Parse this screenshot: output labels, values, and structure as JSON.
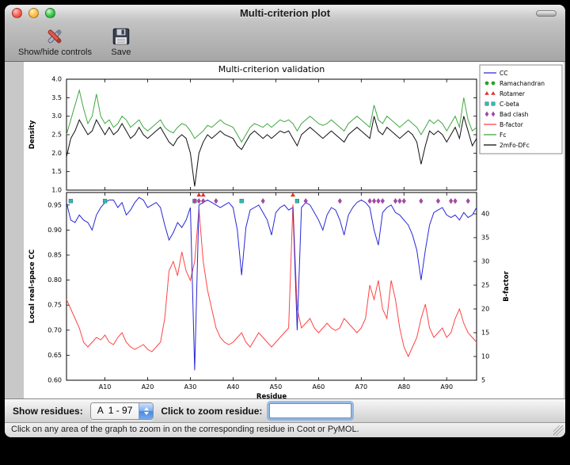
{
  "window": {
    "title": "Multi-criterion plot"
  },
  "toolbar": {
    "buttons": [
      {
        "label": "Show/hide controls"
      },
      {
        "label": "Save"
      }
    ]
  },
  "controls": {
    "show_residues_label": "Show residues:",
    "residue_range_value": "A  1 - 97",
    "zoom_label": "Click to zoom residue:",
    "zoom_input_value": ""
  },
  "status": {
    "text": "Click on any area of the graph to zoom in on the corresponding residue in Coot or PyMOL."
  },
  "chart_data": {
    "type": "line",
    "title": "Multi-criterion validation",
    "x_range": [
      1,
      97
    ],
    "xlabel": "Residue",
    "xtick_positions": [
      10,
      20,
      30,
      40,
      50,
      60,
      70,
      80,
      90
    ],
    "xtick_labels": [
      "A10",
      "A20",
      "A30",
      "A40",
      "A50",
      "A60",
      "A70",
      "A80",
      "A90"
    ],
    "top_plot": {
      "ylabel": "Density",
      "ylim": [
        1.0,
        4.0
      ],
      "yticks": [
        1.0,
        1.5,
        2.0,
        2.5,
        3.0,
        3.5,
        4.0
      ],
      "series": [
        {
          "name": "Fc",
          "color": "#41a742",
          "values": [
            2.5,
            2.9,
            3.3,
            3.7,
            3.2,
            2.8,
            3.0,
            3.6,
            3.0,
            2.8,
            2.9,
            2.7,
            2.8,
            3.0,
            2.9,
            2.7,
            2.8,
            2.9,
            2.7,
            2.6,
            2.7,
            2.8,
            2.9,
            2.7,
            2.6,
            2.55,
            2.7,
            2.8,
            2.75,
            2.6,
            2.4,
            2.5,
            2.6,
            2.75,
            2.7,
            2.8,
            2.9,
            2.8,
            2.75,
            2.7,
            2.5,
            2.3,
            2.5,
            2.7,
            2.8,
            2.75,
            2.7,
            2.8,
            2.7,
            2.8,
            2.9,
            2.85,
            2.9,
            2.8,
            2.6,
            2.8,
            2.9,
            3.0,
            2.9,
            2.8,
            2.75,
            2.8,
            2.9,
            2.8,
            2.7,
            2.6,
            2.8,
            2.9,
            3.0,
            2.9,
            2.8,
            2.7,
            3.3,
            2.9,
            2.8,
            3.0,
            2.9,
            2.8,
            2.7,
            2.8,
            2.9,
            2.8,
            2.7,
            2.5,
            2.7,
            2.9,
            2.8,
            2.9,
            2.8,
            2.6,
            2.8,
            3.0,
            2.7,
            3.5,
            2.9,
            2.6,
            2.7
          ]
        },
        {
          "name": "2mFo-DFc",
          "color": "#111111",
          "values": [
            1.9,
            2.4,
            2.6,
            2.9,
            2.7,
            2.5,
            2.6,
            2.9,
            2.7,
            2.5,
            2.7,
            2.5,
            2.6,
            2.8,
            2.6,
            2.4,
            2.5,
            2.7,
            2.5,
            2.4,
            2.5,
            2.6,
            2.7,
            2.5,
            2.3,
            2.2,
            2.4,
            2.5,
            2.4,
            2.0,
            1.1,
            2.0,
            2.3,
            2.5,
            2.4,
            2.5,
            2.6,
            2.5,
            2.45,
            2.4,
            2.2,
            2.1,
            2.3,
            2.5,
            2.6,
            2.5,
            2.4,
            2.5,
            2.4,
            2.5,
            2.6,
            2.55,
            2.6,
            2.4,
            2.2,
            2.5,
            2.6,
            2.7,
            2.6,
            2.5,
            2.4,
            2.5,
            2.6,
            2.5,
            2.4,
            2.3,
            2.5,
            2.6,
            2.7,
            2.6,
            2.5,
            2.4,
            3.0,
            2.6,
            2.5,
            2.7,
            2.6,
            2.5,
            2.4,
            2.5,
            2.6,
            2.5,
            2.3,
            1.7,
            2.2,
            2.6,
            2.5,
            2.6,
            2.5,
            2.3,
            2.5,
            2.7,
            2.4,
            3.0,
            2.6,
            2.2,
            2.4
          ]
        }
      ]
    },
    "bottom_plot": {
      "ylabel_left": "Local real-space CC",
      "ylabel_right": "B-factor",
      "ylim_left": [
        0.6,
        0.975
      ],
      "yticks_left": [
        0.6,
        0.65,
        0.7,
        0.75,
        0.8,
        0.85,
        0.9,
        0.95
      ],
      "ylim_right": [
        5,
        44.5
      ],
      "yticks_right": [
        5,
        10,
        15,
        20,
        25,
        30,
        35,
        40
      ],
      "series": [
        {
          "name": "CC",
          "axis": "left",
          "color": "#2727d8",
          "values": [
            0.955,
            0.92,
            0.915,
            0.93,
            0.92,
            0.915,
            0.9,
            0.93,
            0.945,
            0.955,
            0.96,
            0.96,
            0.945,
            0.955,
            0.93,
            0.94,
            0.955,
            0.965,
            0.96,
            0.945,
            0.95,
            0.955,
            0.945,
            0.91,
            0.88,
            0.895,
            0.915,
            0.905,
            0.92,
            0.945,
            0.62,
            0.95,
            0.955,
            0.96,
            0.955,
            0.95,
            0.945,
            0.95,
            0.955,
            0.945,
            0.9,
            0.81,
            0.905,
            0.94,
            0.945,
            0.95,
            0.935,
            0.92,
            0.89,
            0.935,
            0.945,
            0.95,
            0.94,
            0.945,
            0.7,
            0.945,
            0.955,
            0.95,
            0.935,
            0.92,
            0.9,
            0.93,
            0.945,
            0.94,
            0.92,
            0.89,
            0.93,
            0.945,
            0.955,
            0.96,
            0.955,
            0.945,
            0.9,
            0.87,
            0.935,
            0.945,
            0.95,
            0.935,
            0.93,
            0.92,
            0.91,
            0.89,
            0.86,
            0.8,
            0.86,
            0.91,
            0.935,
            0.94,
            0.945,
            0.93,
            0.925,
            0.93,
            0.92,
            0.935,
            0.925,
            0.93,
            0.945
          ]
        },
        {
          "name": "B-factor",
          "axis": "right",
          "color": "#ff4444",
          "values": [
            22,
            20,
            18,
            16,
            13,
            12,
            13,
            14,
            13.5,
            14.5,
            13,
            12.5,
            14,
            15,
            13,
            12,
            11.5,
            12,
            12.5,
            11.5,
            11,
            12,
            13,
            18,
            28,
            30,
            27,
            32,
            28,
            26,
            30,
            41,
            30,
            24,
            20,
            16,
            14,
            13,
            12.5,
            13,
            14,
            15,
            13,
            12,
            13.5,
            15,
            14,
            13,
            12,
            13,
            14,
            15,
            16,
            42,
            20,
            16,
            17,
            18,
            16,
            15,
            16,
            17,
            16,
            15.5,
            16,
            18,
            17,
            16,
            15,
            16,
            18,
            25,
            22,
            26,
            20,
            18,
            26,
            22,
            16,
            12,
            10,
            12,
            14,
            18,
            21,
            16,
            14,
            15,
            16,
            14,
            15,
            18,
            20,
            17,
            15,
            14,
            13
          ]
        }
      ],
      "markers": [
        {
          "name": "Ramachandran",
          "shape": "circle",
          "color": "#2ca02c",
          "residues": []
        },
        {
          "name": "Rotamer",
          "shape": "triangle",
          "color": "#e03128",
          "residues": [
            32,
            33,
            54
          ]
        },
        {
          "name": "C-beta",
          "shape": "square",
          "color": "#35b8b0",
          "residues": [
            2,
            10,
            31,
            42,
            55
          ]
        },
        {
          "name": "Bad clash",
          "shape": "diamond",
          "color": "#a349a4",
          "residues": [
            31,
            32,
            33,
            36,
            47,
            57,
            65,
            72,
            73,
            74,
            75,
            78,
            79,
            80,
            84,
            88,
            91,
            92,
            95
          ]
        }
      ]
    },
    "legend": [
      {
        "label": "CC",
        "type": "line",
        "color": "#2727d8"
      },
      {
        "label": "Ramachandran",
        "type": "circle",
        "color": "#2ca02c"
      },
      {
        "label": "Rotamer",
        "type": "triangle",
        "color": "#e03128"
      },
      {
        "label": "C-beta",
        "type": "square",
        "color": "#35b8b0"
      },
      {
        "label": "Bad clash",
        "type": "diamond",
        "color": "#a349a4"
      },
      {
        "label": "B-factor",
        "type": "line",
        "color": "#ff4444"
      },
      {
        "label": "Fc",
        "type": "line",
        "color": "#41a742"
      },
      {
        "label": "2mFo-DFc",
        "type": "line",
        "color": "#111111"
      }
    ]
  }
}
